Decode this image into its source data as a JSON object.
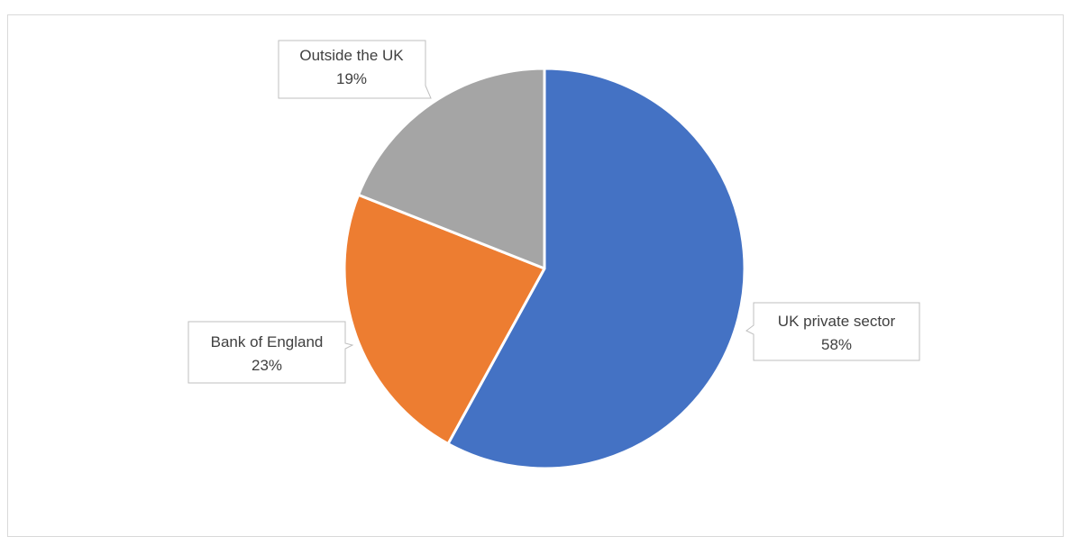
{
  "chart_data": {
    "type": "pie",
    "slices": [
      {
        "label": "UK private sector",
        "value": 58,
        "value_label": "58%",
        "color": "#4472C4"
      },
      {
        "label": "Bank of England",
        "value": 23,
        "value_label": "23%",
        "color": "#ED7D31"
      },
      {
        "label": "Outside the UK",
        "value": 19,
        "value_label": "19%",
        "color": "#A5A5A5"
      }
    ],
    "start_angle_deg": 0,
    "direction": "clockwise",
    "data_labels": "callout",
    "legend": "none",
    "title": ""
  }
}
